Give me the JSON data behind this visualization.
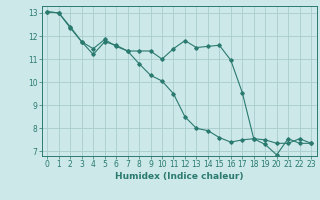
{
  "xlabel": "Humidex (Indice chaleur)",
  "bg_color": "#cce8e8",
  "grid_color": "#aacccc",
  "line_color": "#2a7a70",
  "xlim": [
    -0.5,
    23.5
  ],
  "ylim": [
    6.8,
    13.3
  ],
  "yticks": [
    7,
    8,
    9,
    10,
    11,
    12,
    13
  ],
  "xticks": [
    0,
    1,
    2,
    3,
    4,
    5,
    6,
    7,
    8,
    9,
    10,
    11,
    12,
    13,
    14,
    15,
    16,
    17,
    18,
    19,
    20,
    21,
    22,
    23
  ],
  "line1_x": [
    0,
    1,
    2,
    3,
    4,
    5,
    6,
    7,
    8,
    9,
    10,
    11,
    12,
    13,
    14,
    15,
    16,
    17,
    18,
    19,
    20,
    21,
    22,
    23
  ],
  "line1_y": [
    13.05,
    13.0,
    12.4,
    11.75,
    11.2,
    11.75,
    11.6,
    11.35,
    11.35,
    11.35,
    11.0,
    11.45,
    11.8,
    11.5,
    11.55,
    11.6,
    10.95,
    9.55,
    7.55,
    7.3,
    6.85,
    7.55,
    7.35,
    7.35
  ],
  "line2_x": [
    0,
    1,
    2,
    3,
    4,
    5,
    6,
    7,
    8,
    9,
    10,
    11,
    12,
    13,
    14,
    15,
    16,
    17,
    18,
    19,
    20,
    21,
    22,
    23
  ],
  "line2_y": [
    13.05,
    13.0,
    12.35,
    11.75,
    11.45,
    11.85,
    11.55,
    11.35,
    10.8,
    10.3,
    10.05,
    9.5,
    8.5,
    8.0,
    7.9,
    7.6,
    7.4,
    7.5,
    7.55,
    7.5,
    7.35,
    7.35,
    7.55,
    7.35
  ]
}
